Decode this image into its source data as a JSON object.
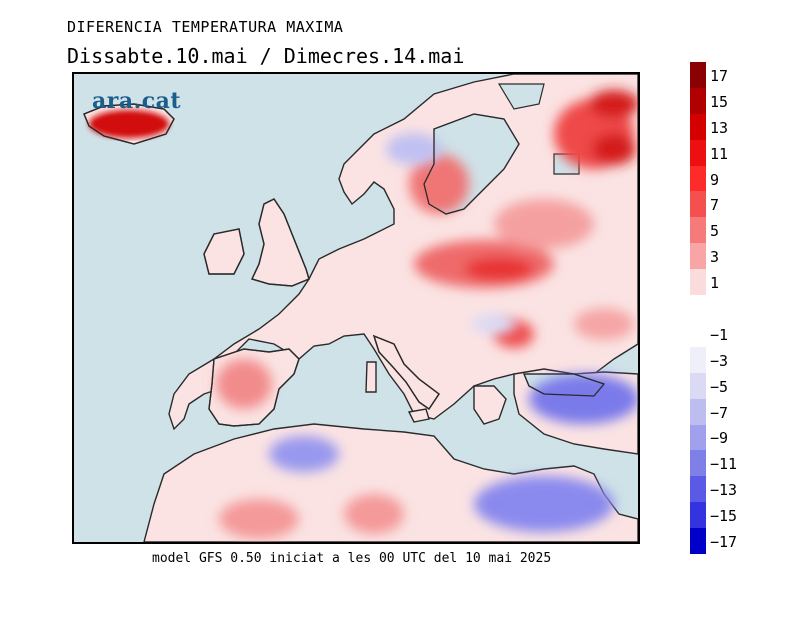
{
  "title": "DIFERENCIA TEMPERATURA MAXIMA",
  "subtitle": "Dissabte.10.mai / Dimecres.14.mai",
  "footer": "model GFS 0.50 iniciat a les 00 UTC del 10 mai 2025",
  "logo": "ara.cat",
  "legend": {
    "labels": [
      "17",
      "15",
      "13",
      "11",
      "9",
      "7",
      "5",
      "3",
      "1",
      "−1",
      "−3",
      "−5",
      "−7",
      "−9",
      "−11",
      "−13",
      "−15",
      "−17"
    ],
    "colors": [
      "#8b0000",
      "#b00000",
      "#d40000",
      "#ee1010",
      "#ff2a2a",
      "#f55050",
      "#f77a7a",
      "#f9a5a5",
      "#fadcdc",
      "#ffffff",
      "#efeffa",
      "#dadaf5",
      "#bdbdf0",
      "#a0a0ec",
      "#7f7fe8",
      "#5a5ae6",
      "#3333e0",
      "#0000c8"
    ]
  },
  "colors": {
    "sea": "#cfe2e8",
    "land": "#fbe6e6",
    "warm": "#f27070",
    "cold": "#8f8ff0"
  }
}
